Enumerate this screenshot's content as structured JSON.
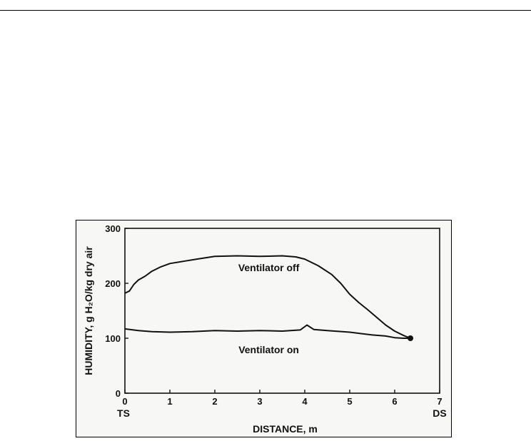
{
  "chart_data": {
    "type": "line",
    "xlabel": "DISTANCE, m",
    "ylabel": "HUMIDITY, g H₂O/kg dry air",
    "xlim": [
      0,
      7
    ],
    "ylim": [
      0,
      300
    ],
    "x_ticks": [
      0,
      1,
      2,
      3,
      4,
      5,
      6,
      7
    ],
    "y_ticks": [
      0,
      100,
      200,
      300
    ],
    "x_end_labels": {
      "start": "TS",
      "end": "DS"
    },
    "grid": false,
    "series": [
      {
        "name": "Ventilator off",
        "x": [
          0,
          0.1,
          0.2,
          0.3,
          0.45,
          0.6,
          0.8,
          1.0,
          1.3,
          1.6,
          2.0,
          2.5,
          3.0,
          3.5,
          3.8,
          4.0,
          4.3,
          4.6,
          4.8,
          5.0,
          5.2,
          5.4,
          5.6,
          5.8,
          6.0,
          6.2,
          6.35
        ],
        "y": [
          182,
          186,
          198,
          206,
          213,
          222,
          230,
          236,
          240,
          244,
          249,
          250,
          249,
          250,
          248,
          244,
          232,
          216,
          200,
          180,
          165,
          152,
          138,
          124,
          113,
          105,
          100
        ]
      },
      {
        "name": "Ventilator on",
        "x": [
          0,
          0.3,
          0.6,
          1.0,
          1.5,
          2.0,
          2.5,
          3.0,
          3.5,
          3.9,
          4.05,
          4.2,
          4.5,
          5.0,
          5.5,
          5.8,
          6.0,
          6.2,
          6.35
        ],
        "y": [
          117,
          114,
          112,
          111,
          112,
          114,
          113,
          114,
          113,
          115,
          124,
          116,
          114,
          111,
          106,
          104,
          101,
          100,
          100
        ]
      }
    ],
    "end_marker": {
      "x": 6.35,
      "y": 100
    }
  }
}
